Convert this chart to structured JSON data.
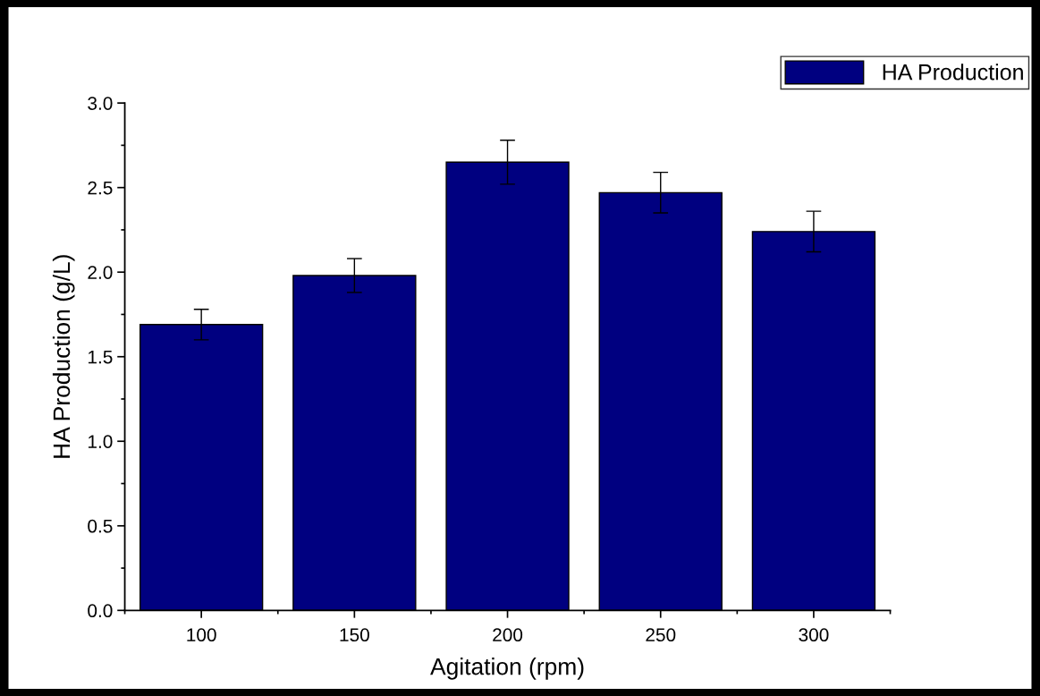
{
  "chart_data": {
    "type": "bar",
    "xlabel": "Agitation (rpm)",
    "ylabel": "HA Production (g/L)",
    "categories": [
      "100",
      "150",
      "200",
      "250",
      "300"
    ],
    "series": [
      {
        "name": "HA Production",
        "color": "#000080",
        "values": [
          1.69,
          1.98,
          2.65,
          2.47,
          2.24
        ],
        "errors": [
          0.09,
          0.1,
          0.13,
          0.12,
          0.12
        ]
      }
    ],
    "ylim": [
      0,
      3.0
    ],
    "yticks": [
      {
        "value": 0,
        "label": "0.0"
      },
      {
        "value": 0.5,
        "label": "0.5"
      },
      {
        "value": 1.0,
        "label": "1.0"
      },
      {
        "value": 1.5,
        "label": "1.5"
      },
      {
        "value": 2.0,
        "label": "2.0"
      },
      {
        "value": 2.5,
        "label": "2.5"
      },
      {
        "value": 3.0,
        "label": "3.0"
      }
    ],
    "grid": false,
    "legend": "top right"
  }
}
